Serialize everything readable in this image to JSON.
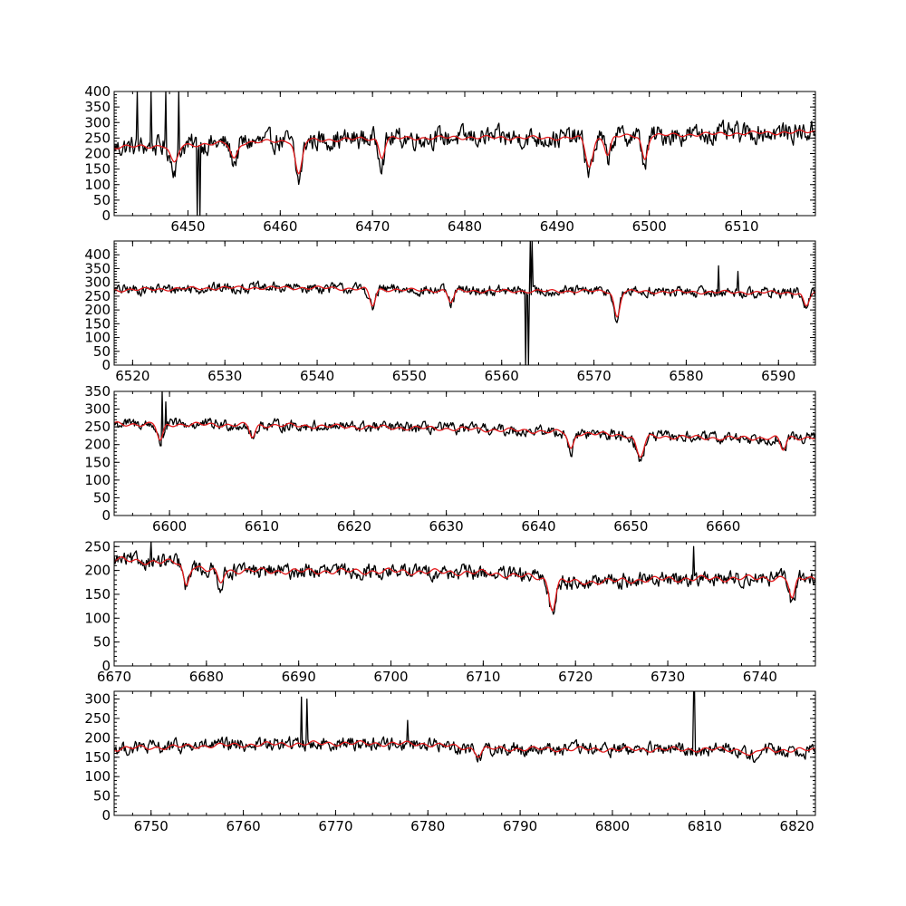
{
  "chart_data": [
    {
      "type": "line",
      "xlim": [
        6442,
        6518
      ],
      "ylim": [
        0,
        400
      ],
      "xticks": [
        6450,
        6460,
        6470,
        6480,
        6490,
        6500,
        6510
      ],
      "yticks": [
        0,
        50,
        100,
        150,
        200,
        250,
        300,
        350,
        400
      ],
      "continuum": [
        [
          6442,
          220
        ],
        [
          6450,
          228
        ],
        [
          6460,
          240
        ],
        [
          6470,
          248
        ],
        [
          6480,
          252
        ],
        [
          6490,
          250
        ],
        [
          6500,
          258
        ],
        [
          6510,
          265
        ],
        [
          6518,
          270
        ]
      ],
      "noise": 38,
      "lines": [
        [
          6448.5,
          70,
          0.4
        ],
        [
          6455.0,
          60,
          0.35
        ],
        [
          6462.0,
          130,
          0.35
        ],
        [
          6471.0,
          70,
          0.3
        ],
        [
          6493.5,
          110,
          0.4
        ],
        [
          6495.5,
          70,
          0.3
        ],
        [
          6499.5,
          90,
          0.3
        ]
      ],
      "spikes": [
        [
          6444.5,
          400
        ],
        [
          6446.0,
          400
        ],
        [
          6447.6,
          400
        ],
        [
          6449.0,
          400
        ],
        [
          6451.0,
          0
        ],
        [
          6451.3,
          0
        ]
      ],
      "series": [
        {
          "color": "#000000"
        },
        {
          "color": "#e31a1c"
        }
      ]
    },
    {
      "type": "line",
      "xlim": [
        6518,
        6594
      ],
      "ylim": [
        0,
        450
      ],
      "xticks": [
        6520,
        6530,
        6540,
        6550,
        6560,
        6570,
        6580,
        6590
      ],
      "yticks": [
        0,
        50,
        100,
        150,
        200,
        250,
        300,
        350,
        400
      ],
      "continuum": [
        [
          6518,
          272
        ],
        [
          6530,
          280
        ],
        [
          6540,
          280
        ],
        [
          6550,
          272
        ],
        [
          6560,
          268
        ],
        [
          6570,
          268
        ],
        [
          6580,
          265
        ],
        [
          6594,
          262
        ]
      ],
      "noise": 22,
      "lines": [
        [
          6546.0,
          70,
          0.3
        ],
        [
          6554.5,
          50,
          0.3
        ],
        [
          6572.5,
          110,
          0.3
        ],
        [
          6593.0,
          60,
          0.3
        ]
      ],
      "spikes": [
        [
          6562.6,
          0
        ],
        [
          6562.9,
          0
        ],
        [
          6563.1,
          450
        ],
        [
          6563.3,
          450
        ],
        [
          6583.5,
          360
        ],
        [
          6585.6,
          340
        ]
      ],
      "series": [
        {
          "color": "#000000"
        },
        {
          "color": "#e31a1c"
        }
      ]
    },
    {
      "type": "line",
      "xlim": [
        6594,
        6670
      ],
      "ylim": [
        0,
        350
      ],
      "xticks": [
        6600,
        6610,
        6620,
        6630,
        6640,
        6650,
        6660
      ],
      "yticks": [
        0,
        50,
        100,
        150,
        200,
        250,
        300,
        350
      ],
      "continuum": [
        [
          6594,
          258
        ],
        [
          6610,
          255
        ],
        [
          6620,
          250
        ],
        [
          6630,
          245
        ],
        [
          6640,
          238
        ],
        [
          6650,
          225
        ],
        [
          6660,
          218
        ],
        [
          6670,
          220
        ]
      ],
      "noise": 18,
      "lines": [
        [
          6599.0,
          55,
          0.3
        ],
        [
          6609.0,
          40,
          0.3
        ],
        [
          6643.5,
          55,
          0.3
        ],
        [
          6651.0,
          70,
          0.4
        ],
        [
          6666.5,
          40,
          0.3
        ]
      ],
      "spikes": [
        [
          6599.2,
          350
        ],
        [
          6599.6,
          320
        ]
      ],
      "series": [
        {
          "color": "#000000"
        },
        {
          "color": "#e31a1c"
        }
      ]
    },
    {
      "type": "line",
      "xlim": [
        6670,
        6746
      ],
      "ylim": [
        0,
        260
      ],
      "xticks": [
        6670,
        6680,
        6690,
        6700,
        6710,
        6720,
        6730,
        6740
      ],
      "yticks": [
        0,
        50,
        100,
        150,
        200,
        250
      ],
      "continuum": [
        [
          6670,
          222
        ],
        [
          6678,
          215
        ],
        [
          6680,
          200
        ],
        [
          6690,
          198
        ],
        [
          6700,
          198
        ],
        [
          6710,
          195
        ],
        [
          6716,
          185
        ],
        [
          6720,
          175
        ],
        [
          6730,
          182
        ],
        [
          6746,
          185
        ]
      ],
      "noise": 18,
      "lines": [
        [
          6677.8,
          55,
          0.3
        ],
        [
          6681.5,
          30,
          0.3
        ],
        [
          6717.5,
          70,
          0.35
        ],
        [
          6743.5,
          55,
          0.3
        ]
      ],
      "spikes": [
        [
          6674.0,
          262
        ],
        [
          6732.8,
          250
        ]
      ],
      "series": [
        {
          "color": "#000000"
        },
        {
          "color": "#e31a1c"
        }
      ]
    },
    {
      "type": "line",
      "xlim": [
        6746,
        6822
      ],
      "ylim": [
        0,
        320
      ],
      "xticks": [
        6750,
        6760,
        6770,
        6780,
        6790,
        6800,
        6810,
        6820
      ],
      "yticks": [
        0,
        50,
        100,
        150,
        200,
        250,
        300
      ],
      "continuum": [
        [
          6746,
          172
        ],
        [
          6760,
          182
        ],
        [
          6770,
          186
        ],
        [
          6780,
          184
        ],
        [
          6785,
          172
        ],
        [
          6800,
          170
        ],
        [
          6810,
          170
        ],
        [
          6822,
          168
        ]
      ],
      "noise": 20,
      "lines": [
        [
          6785.5,
          20,
          0.3
        ],
        [
          6815.0,
          20,
          0.4
        ]
      ],
      "spikes": [
        [
          6766.3,
          305
        ],
        [
          6766.9,
          300
        ],
        [
          6777.8,
          245
        ],
        [
          6808.8,
          320
        ],
        [
          6808.9,
          320
        ]
      ],
      "series": [
        {
          "color": "#000000"
        },
        {
          "color": "#e31a1c"
        }
      ]
    }
  ]
}
